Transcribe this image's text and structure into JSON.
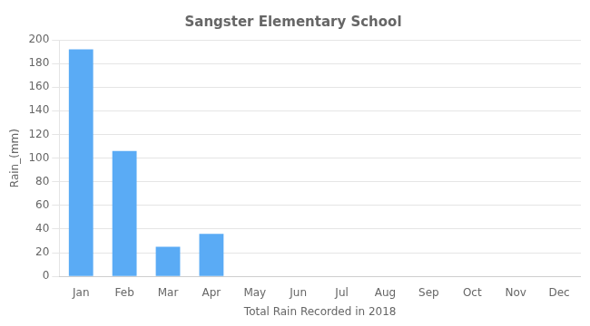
{
  "chart_data": {
    "type": "bar",
    "title": "Sangster Elementary School",
    "xlabel": "Total Rain Recorded in 2018",
    "ylabel": "Rain_(mm)",
    "categories": [
      "Jan",
      "Feb",
      "Mar",
      "Apr",
      "May",
      "Jun",
      "Jul",
      "Aug",
      "Sep",
      "Oct",
      "Nov",
      "Dec"
    ],
    "values": [
      192,
      106,
      25,
      36,
      0,
      0,
      0,
      0,
      0,
      0,
      0,
      0
    ],
    "color": "#5aabf5",
    "ylim": [
      0,
      200
    ],
    "yticks": [
      0,
      20,
      40,
      60,
      80,
      100,
      120,
      140,
      160,
      180,
      200
    ],
    "grid": true
  }
}
